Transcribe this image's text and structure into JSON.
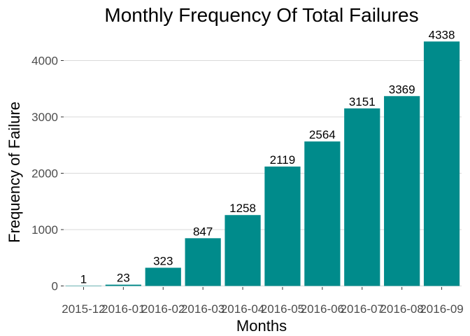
{
  "chart_data": {
    "type": "bar",
    "title": "Monthly Frequency Of Total Failures",
    "xlabel": "Months",
    "ylabel": "Frequency of Failure",
    "categories": [
      "2015-12",
      "2016-01",
      "2016-02",
      "2016-03",
      "2016-04",
      "2016-05",
      "2016-06",
      "2016-07",
      "2016-08",
      "2016-09"
    ],
    "values": [
      1,
      23,
      323,
      847,
      1258,
      2119,
      2564,
      3151,
      3369,
      4338
    ],
    "yticks": [
      0,
      1000,
      2000,
      3000,
      4000
    ],
    "ylim": [
      0,
      4500
    ],
    "grid": true,
    "legend": "none",
    "bar_color": "#008b8b"
  }
}
